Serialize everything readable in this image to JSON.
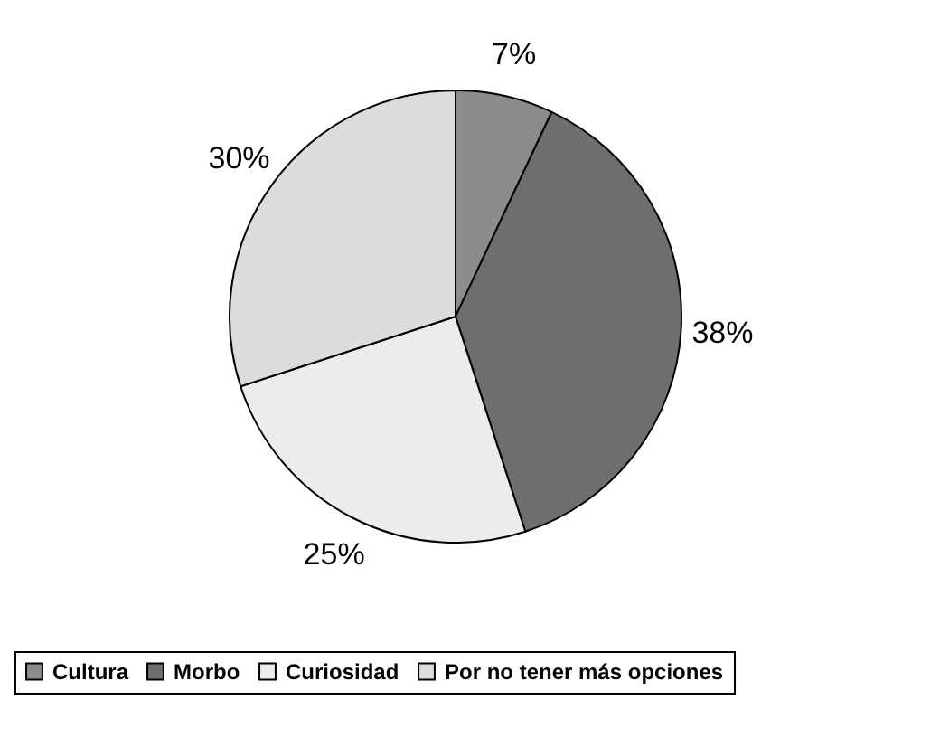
{
  "chart_data": {
    "type": "pie",
    "categories": [
      "Cultura",
      "Morbo",
      "Curiosidad",
      "Por no tener más opciones"
    ],
    "values": [
      7,
      38,
      25,
      30
    ],
    "colors": [
      "#8c8c8c",
      "#6e6e6e",
      "#ececec",
      "#dcdcdc"
    ],
    "value_labels": [
      "7%",
      "38%",
      "25%",
      "30%"
    ],
    "legend": "bottom"
  }
}
